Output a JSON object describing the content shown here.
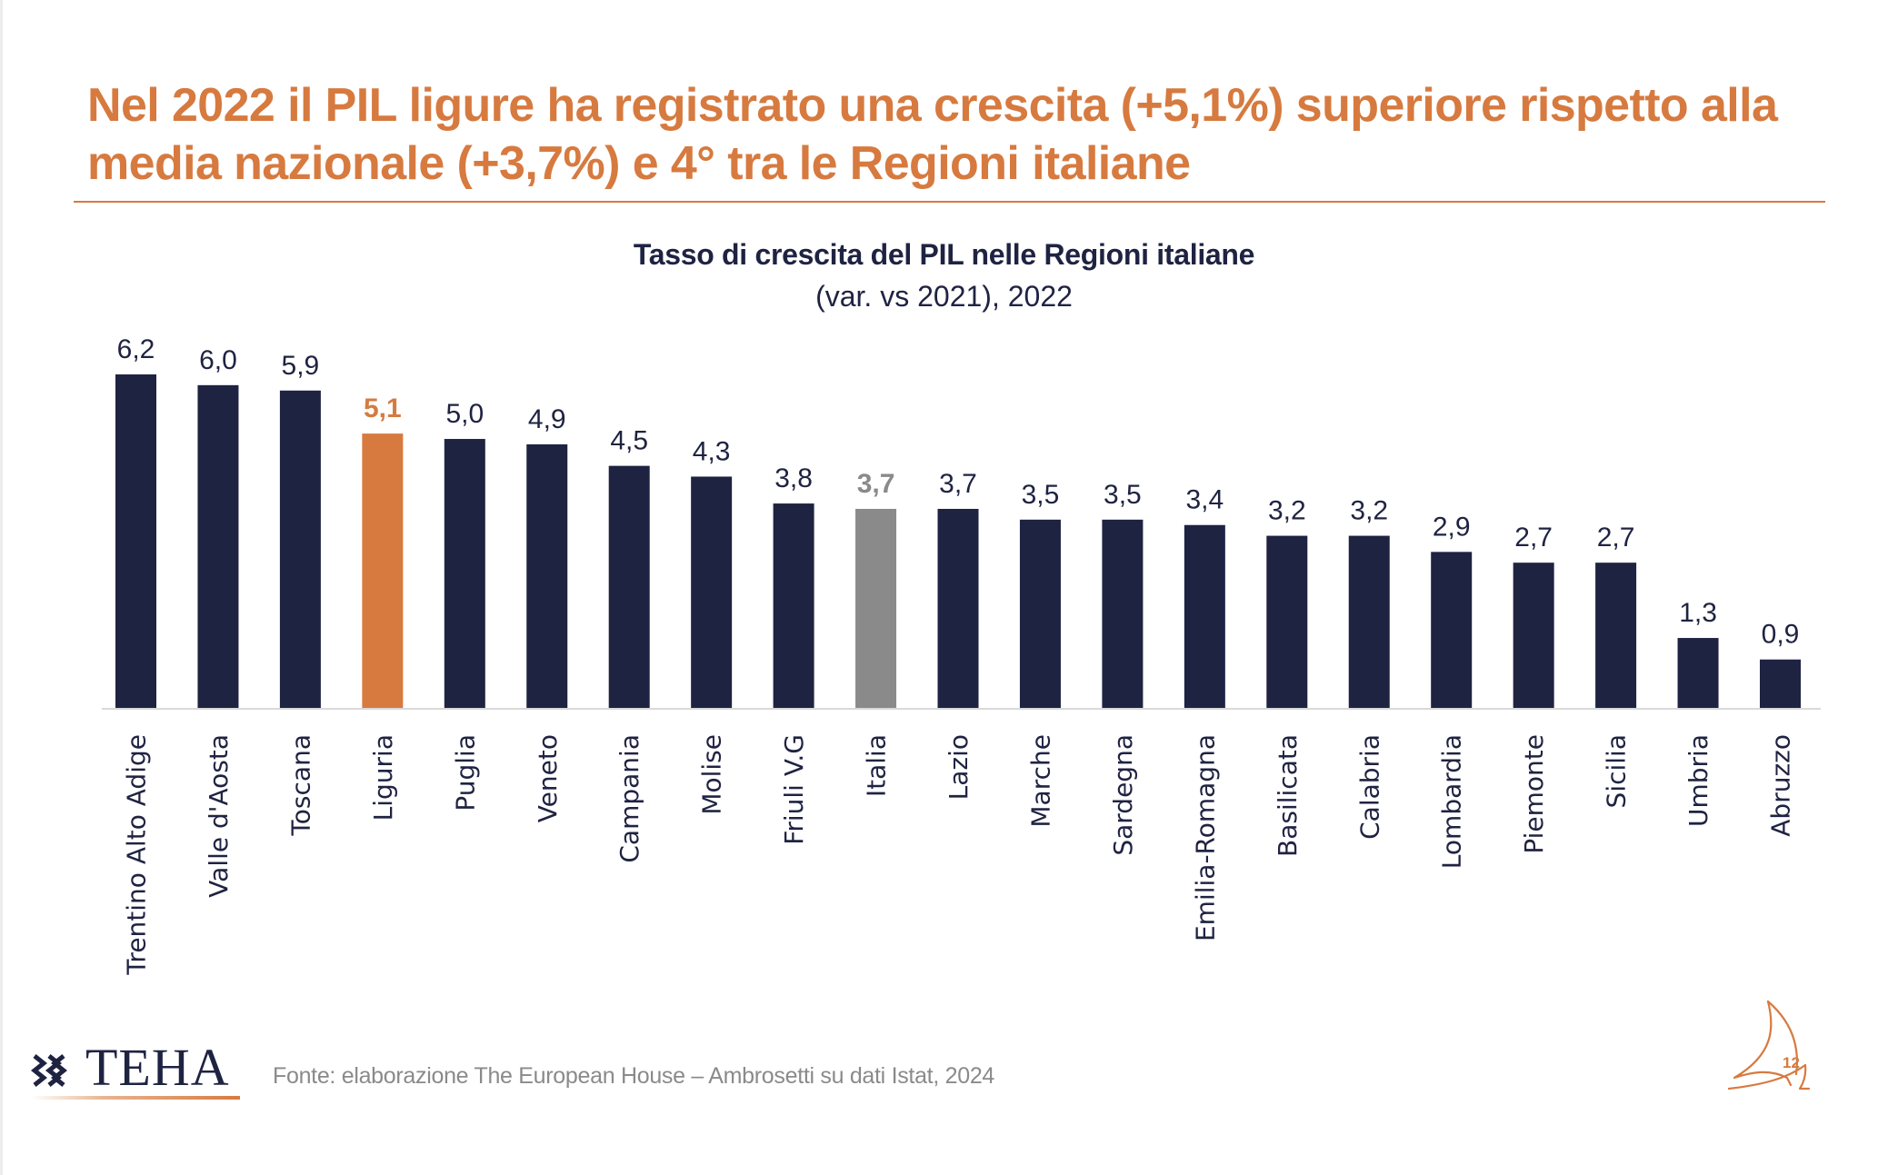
{
  "slide": {
    "headline": "Nel 2022 il PIL ligure ha registrato una crescita (+5,1%) superiore rispetto alla media nazionale (+3,7%) e 4° tra le Regioni italiane",
    "source": "Fonte: elaborazione The European House – Ambrosetti su dati Istat, 2024",
    "logo_text": "TEHA",
    "page_number": "12",
    "colors": {
      "accent": "#d77a3f",
      "bar_default": "#1f2342",
      "bar_highlight": "#d77a3f",
      "bar_national": "#8a8a8a",
      "axis": "#d9d9d9"
    }
  },
  "chart_data": {
    "type": "bar",
    "title": "Tasso di crescita del PIL nelle Regioni italiane",
    "subtitle": "(var. vs 2021), 2022",
    "xlabel": "",
    "ylabel": "",
    "ylim": [
      0,
      6.2
    ],
    "grid": false,
    "legend": "none",
    "decimal_separator": ",",
    "categories": [
      "Trentino Alto Adige",
      "Valle d'Aosta",
      "Toscana",
      "Liguria",
      "Puglia",
      "Veneto",
      "Campania",
      "Molise",
      "Friuli V.G",
      "Italia",
      "Lazio",
      "Marche",
      "Sardegna",
      "Emilia-Romagna",
      "Basilicata",
      "Calabria",
      "Lombardia",
      "Piemonte",
      "Sicilia",
      "Umbria",
      "Abruzzo"
    ],
    "values": [
      6.2,
      6.0,
      5.9,
      5.1,
      5.0,
      4.9,
      4.5,
      4.3,
      3.8,
      3.7,
      3.7,
      3.5,
      3.5,
      3.4,
      3.2,
      3.2,
      2.9,
      2.7,
      2.7,
      1.3,
      0.9
    ],
    "data_labels": [
      "6,2",
      "6,0",
      "5,9",
      "5,1",
      "5,0",
      "4,9",
      "4,5",
      "4,3",
      "3,8",
      "3,7",
      "3,7",
      "3,5",
      "3,5",
      "3,4",
      "3,2",
      "3,2",
      "2,9",
      "2,7",
      "2,7",
      "1,3",
      "0,9"
    ],
    "highlight": {
      "Liguria": "highlight",
      "Italia": "national"
    }
  }
}
